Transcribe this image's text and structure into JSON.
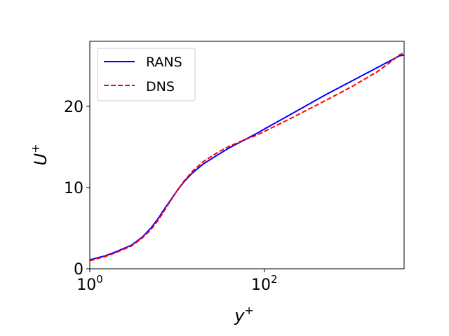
{
  "chart_data": {
    "type": "line",
    "xscale": "log",
    "xlim": [
      1,
      4000
    ],
    "ylim": [
      0,
      28
    ],
    "xticks": [
      {
        "value": 1,
        "base": "10",
        "exp": "0"
      },
      {
        "value": 100,
        "base": "10",
        "exp": "2"
      }
    ],
    "yticks": [
      {
        "value": 0,
        "label": "0"
      },
      {
        "value": 10,
        "label": "10"
      },
      {
        "value": 20,
        "label": "20"
      }
    ],
    "xlabel": {
      "main": "y",
      "sup": "+"
    },
    "ylabel": {
      "main": "U",
      "sup": "+"
    },
    "legend_position": "top-left",
    "series": [
      {
        "name": "RANS",
        "color": "#0000ff",
        "style": "solid",
        "x": [
          1,
          1.5,
          2,
          3,
          4,
          5,
          6,
          7,
          8,
          10,
          12,
          15,
          20,
          30,
          40,
          60,
          80,
          100,
          200,
          500,
          1000,
          2000,
          3000,
          3500,
          4000
        ],
        "y": [
          1.1,
          1.6,
          2.1,
          2.9,
          3.9,
          5.0,
          6.1,
          7.2,
          8.1,
          9.6,
          10.7,
          11.8,
          12.9,
          14.1,
          14.9,
          15.9,
          16.6,
          17.2,
          19.0,
          21.4,
          23.1,
          24.8,
          25.8,
          26.2,
          26.3
        ]
      },
      {
        "name": "DNS",
        "color": "#ff0000",
        "style": "dashed",
        "x": [
          1,
          1.5,
          2,
          3,
          4,
          5,
          6,
          7,
          8,
          10,
          12,
          15,
          20,
          30,
          40,
          60,
          80,
          100,
          200,
          500,
          1000,
          2000,
          3000,
          3500,
          4000
        ],
        "y": [
          1.0,
          1.5,
          2.0,
          2.8,
          3.8,
          4.8,
          5.9,
          7.0,
          8.0,
          9.6,
          10.8,
          12.0,
          13.2,
          14.4,
          15.1,
          15.9,
          16.4,
          16.9,
          18.5,
          20.7,
          22.4,
          24.3,
          25.7,
          26.3,
          26.6
        ]
      }
    ]
  }
}
